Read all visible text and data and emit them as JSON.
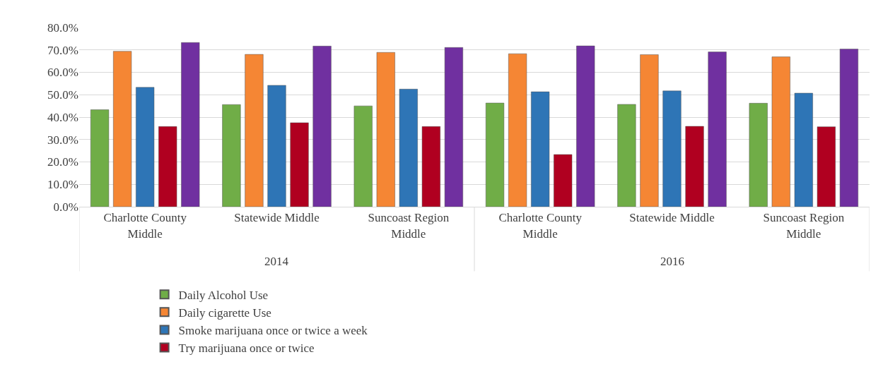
{
  "chart_data": {
    "type": "bar",
    "categories": [
      "Charlotte County Middle",
      "Statewide Middle",
      "Suncoast Region Middle",
      "Charlotte County Middle",
      "Statewide Middle",
      "Suncoast Region Middle"
    ],
    "series": [
      {
        "name": "Daily Alcohol Use",
        "color": "#70ad47",
        "values": [
          43.3,
          45.6,
          45.0,
          46.3,
          45.7,
          46.2
        ]
      },
      {
        "name": "Daily cigarette Use",
        "color": "#f58634",
        "values": [
          69.4,
          68.0,
          68.9,
          68.3,
          67.9,
          66.9
        ]
      },
      {
        "name": "Smoke marijuana once or twice a week",
        "color": "#2e75b6",
        "values": [
          53.3,
          54.2,
          52.5,
          51.3,
          51.7,
          50.7
        ]
      },
      {
        "name": "Try marijuana once or twice",
        "color": "#b00020",
        "values": [
          35.8,
          37.5,
          35.8,
          23.3,
          35.9,
          35.7
        ]
      },
      {
        "color": "#7030a0",
        "values": [
          73.3,
          71.7,
          71.1,
          71.8,
          69.1,
          70.4
        ]
      }
    ],
    "annotations": [
      "2014",
      "2016"
    ],
    "ylim": [
      0,
      80
    ],
    "yticks": [
      {
        "value": 0,
        "label": "0.0%"
      },
      {
        "value": 10,
        "label": "10.0%"
      },
      {
        "value": 20,
        "label": "20.0%"
      },
      {
        "value": 30,
        "label": "30.0%"
      },
      {
        "value": 40,
        "label": "40.0%"
      },
      {
        "value": 50,
        "label": "50.0%"
      },
      {
        "value": 60,
        "label": "60.0%"
      },
      {
        "value": 70,
        "label": "70.0%"
      },
      {
        "value": 80,
        "label": "80.0%"
      }
    ],
    "grid": "y",
    "legend": "bottom"
  }
}
